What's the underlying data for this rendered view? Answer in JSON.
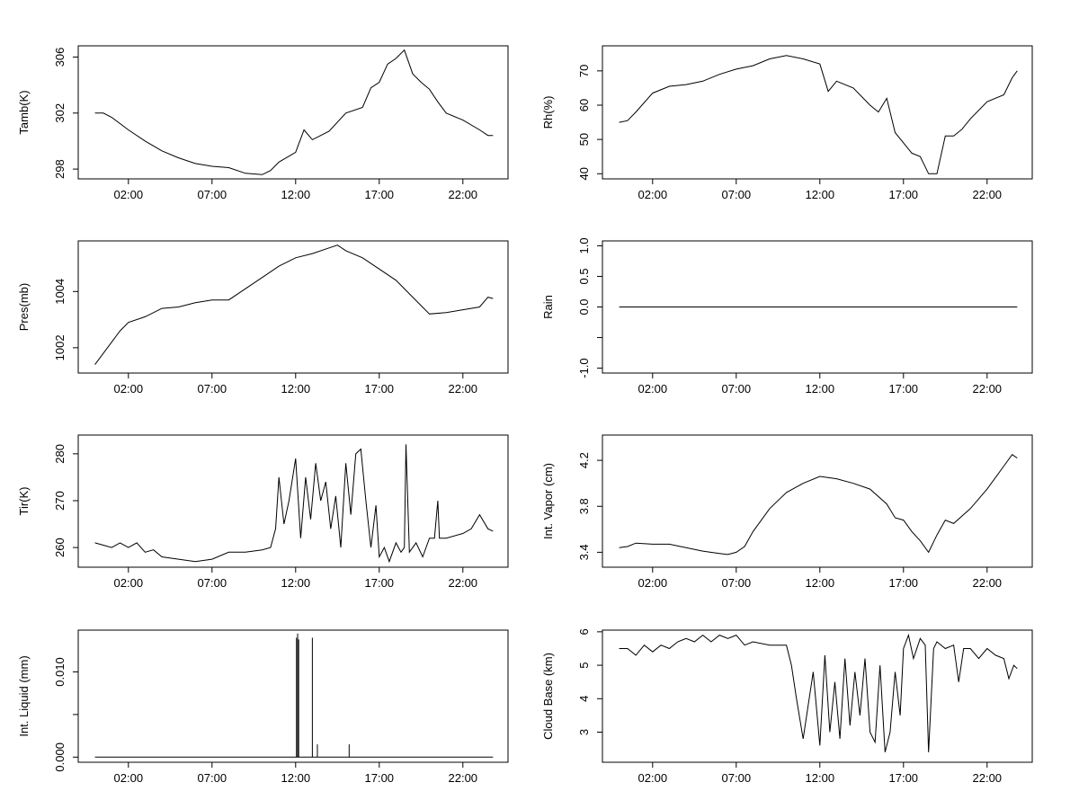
{
  "figure": {
    "x_tick_labels": [
      "02:00",
      "07:00",
      "12:00",
      "17:00",
      "22:00"
    ]
  },
  "chart_data": [
    {
      "id": "tamb",
      "type": "line",
      "title": "",
      "xlabel": "",
      "ylabel": "Tamb(K)",
      "x_unit": "hours",
      "xlim": [
        -1.0,
        24.7
      ],
      "ylim": [
        297.3,
        306.8
      ],
      "x_ticks": [
        2,
        7,
        12,
        17,
        22
      ],
      "y_ticks": [
        298,
        302,
        306
      ],
      "y_tick_labels": [
        "298",
        "302",
        "306"
      ],
      "series": [
        {
          "name": "Tamb(K)",
          "x": [
            0,
            0.5,
            1,
            2,
            3,
            4,
            5,
            6,
            7,
            8,
            9,
            10,
            10.5,
            11,
            12,
            12.5,
            13,
            14,
            15,
            16,
            16.5,
            17,
            17.5,
            18,
            18.5,
            19,
            19.5,
            20,
            20.5,
            21,
            22,
            23,
            23.5,
            23.8
          ],
          "y": [
            302,
            302.0,
            301.7,
            300.8,
            300.0,
            299.3,
            298.8,
            298.4,
            298.2,
            298.1,
            297.7,
            297.6,
            297.9,
            298.5,
            299.2,
            300.8,
            300.1,
            300.7,
            302.0,
            302.4,
            303.8,
            304.2,
            305.5,
            305.9,
            306.5,
            304.8,
            304.2,
            303.7,
            302.8,
            302.0,
            301.5,
            300.8,
            300.4,
            300.4
          ]
        }
      ]
    },
    {
      "id": "rh",
      "type": "line",
      "title": "",
      "xlabel": "",
      "ylabel": "Rh(%)",
      "x_unit": "hours",
      "xlim": [
        -1.0,
        24.7
      ],
      "ylim": [
        38.5,
        77.3
      ],
      "x_ticks": [
        2,
        7,
        12,
        17,
        22
      ],
      "y_ticks": [
        40,
        50,
        60,
        70
      ],
      "y_tick_labels": [
        "40",
        "50",
        "60",
        "70"
      ],
      "series": [
        {
          "name": "Rh(%)",
          "x": [
            0,
            0.5,
            1,
            2,
            3,
            4,
            5,
            6,
            7,
            8,
            9,
            10,
            11,
            12,
            12.5,
            13,
            14,
            15,
            15.5,
            16,
            16.5,
            17,
            17.5,
            18,
            18.5,
            19,
            19.5,
            20,
            20.5,
            21,
            22,
            23,
            23.5,
            23.8
          ],
          "y": [
            55,
            55.5,
            58,
            63.5,
            65.5,
            66,
            67,
            69,
            70.5,
            71.5,
            73.5,
            74.5,
            73.5,
            72,
            64,
            67,
            65,
            60,
            58,
            62,
            52,
            49,
            46,
            45,
            40,
            40,
            51,
            51,
            53,
            56,
            61,
            63,
            68,
            70
          ]
        }
      ]
    },
    {
      "id": "pres",
      "type": "line",
      "title": "",
      "xlabel": "",
      "ylabel": "Pres(mb)",
      "x_unit": "hours",
      "xlim": [
        -1.0,
        24.7
      ],
      "ylim": [
        1001.1,
        1005.8
      ],
      "x_ticks": [
        2,
        7,
        12,
        17,
        22
      ],
      "y_ticks": [
        1002,
        1004
      ],
      "y_tick_labels": [
        "1002",
        "1004"
      ],
      "series": [
        {
          "name": "Pres(mb)",
          "x": [
            0,
            0.5,
            1,
            1.5,
            2,
            3,
            4,
            5,
            6,
            7,
            8,
            9,
            10,
            11,
            12,
            13,
            14,
            14.5,
            15,
            16,
            17,
            18,
            19,
            20,
            21,
            22,
            23,
            23.5,
            23.8
          ],
          "y": [
            1001.4,
            1001.8,
            1002.2,
            1002.6,
            1002.9,
            1003.1,
            1003.4,
            1003.45,
            1003.6,
            1003.7,
            1003.7,
            1004.1,
            1004.5,
            1004.9,
            1005.2,
            1005.35,
            1005.55,
            1005.65,
            1005.45,
            1005.2,
            1004.8,
            1004.4,
            1003.8,
            1003.2,
            1003.25,
            1003.35,
            1003.45,
            1003.8,
            1003.75
          ]
        }
      ]
    },
    {
      "id": "rain",
      "type": "line",
      "title": "",
      "xlabel": "",
      "ylabel": "Rain",
      "x_unit": "hours",
      "xlim": [
        -1.0,
        24.7
      ],
      "ylim": [
        -1.08,
        1.08
      ],
      "x_ticks": [
        2,
        7,
        12,
        17,
        22
      ],
      "y_ticks": [
        -1.0,
        -0.5,
        0.0,
        0.5,
        1.0
      ],
      "y_tick_labels": [
        "-1.0",
        "",
        "0.0",
        "0.5",
        "1.0"
      ],
      "series": [
        {
          "name": "Rain",
          "x": [
            0,
            23.8
          ],
          "y": [
            0.0,
            0.0
          ]
        }
      ]
    },
    {
      "id": "tir",
      "type": "line",
      "title": "",
      "xlabel": "",
      "ylabel": "Tir(K)",
      "x_unit": "hours",
      "xlim": [
        -1.0,
        24.7
      ],
      "ylim": [
        255.8,
        284.0
      ],
      "x_ticks": [
        2,
        7,
        12,
        17,
        22
      ],
      "y_ticks": [
        260,
        270,
        280
      ],
      "y_tick_labels": [
        "260",
        "270",
        "280"
      ],
      "series": [
        {
          "name": "Tir(K)",
          "x": [
            0,
            0.5,
            1,
            1.5,
            2,
            2.5,
            3,
            3.5,
            4,
            5,
            6,
            7,
            8,
            9,
            10,
            10.5,
            10.8,
            11,
            11.3,
            11.6,
            12,
            12.3,
            12.6,
            12.9,
            13.2,
            13.5,
            13.8,
            14.1,
            14.4,
            14.7,
            15,
            15.3,
            15.6,
            15.9,
            16.2,
            16.5,
            16.8,
            17,
            17.3,
            17.6,
            18,
            18.3,
            18.5,
            18.6,
            18.8,
            19.2,
            19.6,
            20,
            20.3,
            20.5,
            20.6,
            20.8,
            21,
            22,
            22.5,
            23,
            23.5,
            23.8
          ],
          "y": [
            261,
            260.5,
            260,
            261,
            260,
            261,
            259,
            259.5,
            258,
            257.5,
            257,
            257.5,
            259,
            259,
            259.5,
            260,
            264,
            275,
            265,
            270,
            279,
            262,
            275,
            266,
            278,
            270,
            274,
            264,
            271,
            260,
            278,
            267,
            280,
            281,
            270,
            260,
            269,
            258,
            260,
            257,
            261,
            259,
            260,
            282,
            259,
            261,
            258,
            262,
            262,
            270,
            262,
            262,
            262,
            263,
            264,
            267,
            264,
            263.5
          ]
        }
      ]
    },
    {
      "id": "vapor",
      "type": "line",
      "title": "",
      "xlabel": "",
      "ylabel": "Int. Vapor (cm)",
      "x_unit": "hours",
      "xlim": [
        -1.0,
        24.7
      ],
      "ylim": [
        3.27,
        4.42
      ],
      "x_ticks": [
        2,
        7,
        12,
        17,
        22
      ],
      "y_ticks": [
        3.4,
        3.8,
        4.2
      ],
      "y_tick_labels": [
        "3.4",
        "3.8",
        "4.2"
      ],
      "series": [
        {
          "name": "Int. Vapor (cm)",
          "x": [
            0,
            0.5,
            1,
            2,
            3,
            4,
            5,
            6,
            6.5,
            7,
            7.5,
            8,
            9,
            10,
            11,
            12,
            13,
            14,
            15,
            16,
            16.5,
            17,
            17.5,
            18,
            18.5,
            19,
            19.5,
            20,
            21,
            22,
            22.5,
            23,
            23.5,
            23.8
          ],
          "y": [
            3.44,
            3.45,
            3.48,
            3.47,
            3.47,
            3.44,
            3.41,
            3.39,
            3.38,
            3.4,
            3.45,
            3.58,
            3.78,
            3.92,
            4.0,
            4.06,
            4.04,
            4.0,
            3.95,
            3.82,
            3.7,
            3.68,
            3.58,
            3.5,
            3.4,
            3.55,
            3.68,
            3.65,
            3.78,
            3.95,
            4.05,
            4.15,
            4.25,
            4.22
          ]
        }
      ]
    },
    {
      "id": "liquid",
      "type": "line",
      "title": "",
      "xlabel": "",
      "ylabel": "Int. Liquid (mm)",
      "x_unit": "hours",
      "xlim": [
        -1.0,
        24.7
      ],
      "ylim": [
        -0.0006,
        0.0149
      ],
      "x_ticks": [
        2,
        7,
        12,
        17,
        22
      ],
      "y_ticks": [
        0.0,
        0.005,
        0.01
      ],
      "y_tick_labels": [
        "0.000",
        "",
        "0.010"
      ],
      "series": [
        {
          "name": "Int. Liquid (mm)",
          "x": [
            0,
            23.8
          ],
          "y": [
            0.0,
            0.0
          ]
        }
      ],
      "spikes": [
        {
          "x": 12.05,
          "y": 0.014
        },
        {
          "x": 12.12,
          "y": 0.0145
        },
        {
          "x": 12.18,
          "y": 0.0138
        },
        {
          "x": 13.0,
          "y": 0.014
        },
        {
          "x": 13.3,
          "y": 0.0015
        },
        {
          "x": 15.2,
          "y": 0.0015
        }
      ]
    },
    {
      "id": "cloud",
      "type": "line",
      "title": "",
      "xlabel": "",
      "ylabel": "Cloud Base (km)",
      "x_unit": "hours",
      "xlim": [
        -1.0,
        24.7
      ],
      "ylim": [
        2.1,
        6.05
      ],
      "x_ticks": [
        2,
        7,
        12,
        17,
        22
      ],
      "y_ticks": [
        3,
        4,
        5,
        6
      ],
      "y_tick_labels": [
        "3",
        "4",
        "5",
        "6"
      ],
      "series": [
        {
          "name": "Cloud Base (km)",
          "x": [
            0,
            0.5,
            1,
            1.5,
            2,
            2.5,
            3,
            3.5,
            4,
            4.5,
            5,
            5.5,
            6,
            6.5,
            7,
            7.5,
            8,
            9,
            10,
            10.3,
            10.6,
            11,
            11.3,
            11.6,
            12,
            12.3,
            12.6,
            12.9,
            13.2,
            13.5,
            13.8,
            14.1,
            14.4,
            14.7,
            15,
            15.3,
            15.6,
            15.9,
            16.2,
            16.5,
            16.8,
            17,
            17.3,
            17.6,
            18,
            18.3,
            18.5,
            18.8,
            19,
            19.5,
            20,
            20.3,
            20.6,
            21,
            21.5,
            22,
            22.5,
            23,
            23.3,
            23.6,
            23.8
          ],
          "y": [
            5.5,
            5.5,
            5.3,
            5.6,
            5.4,
            5.6,
            5.5,
            5.7,
            5.8,
            5.7,
            5.9,
            5.7,
            5.9,
            5.8,
            5.9,
            5.6,
            5.7,
            5.6,
            5.6,
            5.0,
            4.0,
            2.8,
            3.8,
            4.8,
            2.6,
            5.3,
            3.0,
            4.5,
            2.8,
            5.2,
            3.2,
            4.8,
            3.5,
            5.2,
            3.0,
            2.7,
            5.0,
            2.4,
            3.0,
            4.8,
            3.5,
            5.5,
            5.9,
            5.2,
            5.8,
            5.6,
            2.4,
            5.5,
            5.7,
            5.5,
            5.6,
            4.5,
            5.5,
            5.5,
            5.2,
            5.5,
            5.3,
            5.2,
            4.6,
            5.0,
            4.9
          ]
        }
      ]
    }
  ]
}
